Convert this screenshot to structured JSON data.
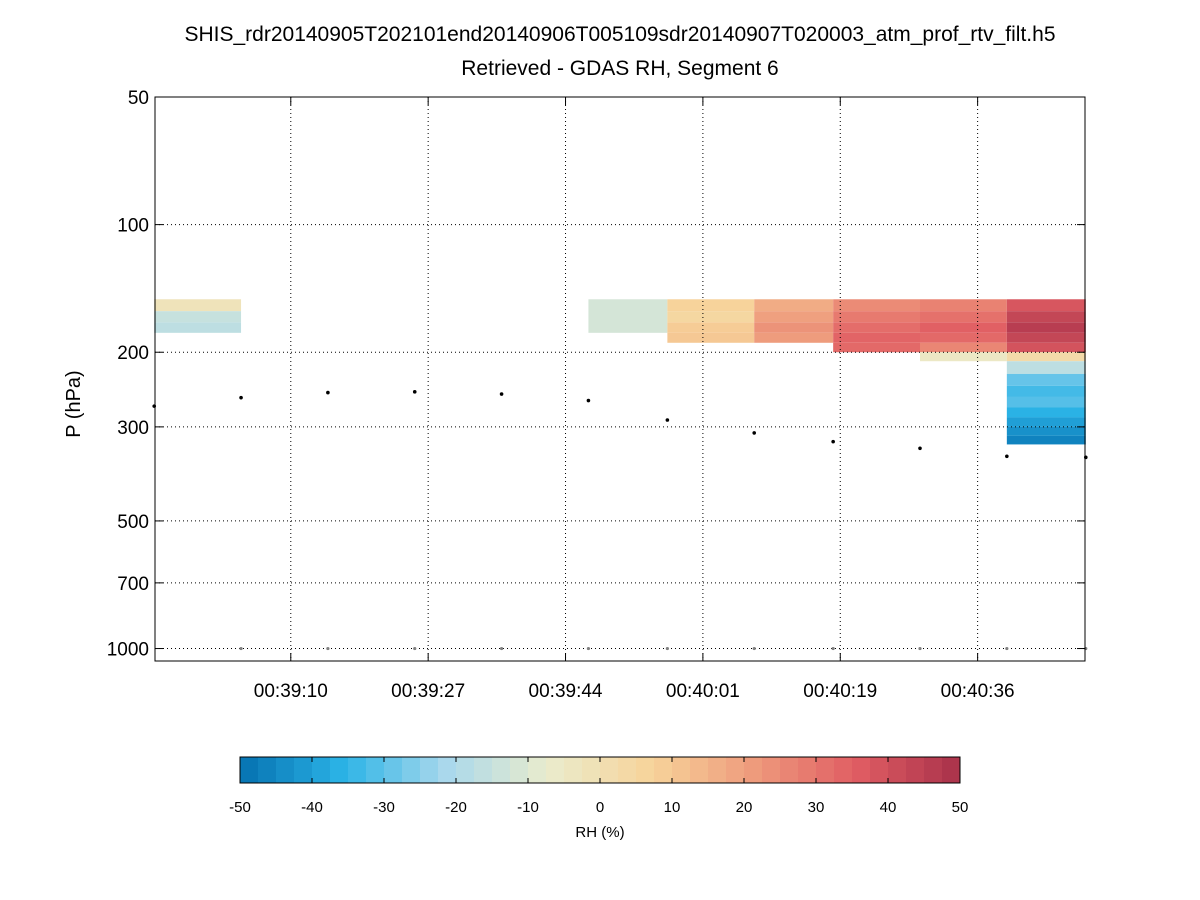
{
  "chart_data": {
    "type": "heatmap",
    "title": "SHIS_rdr20140905T202101end20140906T005109sdr20140907T020003_atm_prof_rtv_filt.h5",
    "subtitle": "Retrieved - GDAS RH, Segment 6",
    "ylabel": "P (hPa)",
    "xlabel": "",
    "y_scale": "log",
    "y_reversed": true,
    "ylim": [
      50,
      1070
    ],
    "y_ticks": [
      50,
      100,
      200,
      300,
      500,
      700,
      1000
    ],
    "y_tick_labels": [
      "50",
      "100",
      "200",
      "300",
      "500",
      "700",
      "1000"
    ],
    "xlim_seconds": [
      2333.1,
      2450.9
    ],
    "x_ticks": [
      "00:39:10",
      "00:39:27",
      "00:39:44",
      "00:40:01",
      "00:40:19",
      "00:40:36"
    ],
    "x_tick_seconds": [
      2350.3,
      2367.7,
      2385.1,
      2402.5,
      2419.9,
      2437.3
    ],
    "grid": true,
    "profile_times": [
      "00:38:53",
      "00:39:04",
      "00:39:15",
      "00:39:26",
      "00:39:37",
      "00:39:48",
      "00:39:58",
      "00:40:09",
      "00:40:19",
      "00:40:30",
      "00:40:41",
      "00:40:51"
    ],
    "cells": [
      {
        "t0": "00:38:53",
        "t1": "00:39:04",
        "p0": 150,
        "p1": 160,
        "rh": -2
      },
      {
        "t0": "00:38:53",
        "t1": "00:39:04",
        "p0": 160,
        "p1": 170,
        "rh": -15
      },
      {
        "t0": "00:38:53",
        "t1": "00:39:04",
        "p0": 170,
        "p1": 180,
        "rh": -17
      },
      {
        "t0": "00:39:48",
        "t1": "00:39:58",
        "p0": 150,
        "p1": 180,
        "rh": -12
      },
      {
        "t0": "00:39:58",
        "t1": "00:40:09",
        "p0": 150,
        "p1": 160,
        "rh": 7
      },
      {
        "t0": "00:39:58",
        "t1": "00:40:09",
        "p0": 160,
        "p1": 170,
        "rh": 5
      },
      {
        "t0": "00:39:58",
        "t1": "00:40:09",
        "p0": 170,
        "p1": 180,
        "rh": 9
      },
      {
        "t0": "00:39:58",
        "t1": "00:40:09",
        "p0": 180,
        "p1": 190,
        "rh": 10
      },
      {
        "t0": "00:40:09",
        "t1": "00:40:19",
        "p0": 150,
        "p1": 160,
        "rh": 17
      },
      {
        "t0": "00:40:09",
        "t1": "00:40:19",
        "p0": 160,
        "p1": 170,
        "rh": 20
      },
      {
        "t0": "00:40:09",
        "t1": "00:40:19",
        "p0": 170,
        "p1": 180,
        "rh": 23
      },
      {
        "t0": "00:40:09",
        "t1": "00:40:19",
        "p0": 180,
        "p1": 190,
        "rh": 21
      },
      {
        "t0": "00:40:19",
        "t1": "00:40:30",
        "p0": 150,
        "p1": 160,
        "rh": 25
      },
      {
        "t0": "00:40:19",
        "t1": "00:40:30",
        "p0": 160,
        "p1": 170,
        "rh": 29
      },
      {
        "t0": "00:40:19",
        "t1": "00:40:30",
        "p0": 170,
        "p1": 180,
        "rh": 32
      },
      {
        "t0": "00:40:19",
        "t1": "00:40:30",
        "p0": 180,
        "p1": 190,
        "rh": 34
      },
      {
        "t0": "00:40:19",
        "t1": "00:40:30",
        "p0": 190,
        "p1": 200,
        "rh": 33
      },
      {
        "t0": "00:40:30",
        "t1": "00:40:41",
        "p0": 150,
        "p1": 160,
        "rh": 27
      },
      {
        "t0": "00:40:30",
        "t1": "00:40:41",
        "p0": 160,
        "p1": 170,
        "rh": 31
      },
      {
        "t0": "00:40:30",
        "t1": "00:40:41",
        "p0": 170,
        "p1": 180,
        "rh": 35
      },
      {
        "t0": "00:40:30",
        "t1": "00:40:41",
        "p0": 180,
        "p1": 190,
        "rh": 33
      },
      {
        "t0": "00:40:30",
        "t1": "00:40:41",
        "p0": 190,
        "p1": 200,
        "rh": 26
      },
      {
        "t0": "00:40:30",
        "t1": "00:40:41",
        "p0": 200,
        "p1": 210,
        "rh": -5
      },
      {
        "t0": "00:40:41",
        "t1": "00:40:51",
        "p0": 150,
        "p1": 160,
        "rh": 38
      },
      {
        "t0": "00:40:41",
        "t1": "00:40:51",
        "p0": 160,
        "p1": 170,
        "rh": 43
      },
      {
        "t0": "00:40:41",
        "t1": "00:40:51",
        "p0": 170,
        "p1": 180,
        "rh": 46
      },
      {
        "t0": "00:40:41",
        "t1": "00:40:51",
        "p0": 180,
        "p1": 190,
        "rh": 43
      },
      {
        "t0": "00:40:41",
        "t1": "00:40:51",
        "p0": 190,
        "p1": 200,
        "rh": 39
      },
      {
        "t0": "00:40:41",
        "t1": "00:40:51",
        "p0": 200,
        "p1": 210,
        "rh": 3
      },
      {
        "t0": "00:40:41",
        "t1": "00:40:51",
        "p0": 210,
        "p1": 225,
        "rh": -17
      },
      {
        "t0": "00:40:41",
        "t1": "00:40:51",
        "p0": 225,
        "p1": 240,
        "rh": -29
      },
      {
        "t0": "00:40:41",
        "t1": "00:40:51",
        "p0": 240,
        "p1": 255,
        "rh": -33
      },
      {
        "t0": "00:40:41",
        "t1": "00:40:51",
        "p0": 255,
        "p1": 270,
        "rh": -31
      },
      {
        "t0": "00:40:41",
        "t1": "00:40:51",
        "p0": 270,
        "p1": 285,
        "rh": -36
      },
      {
        "t0": "00:40:41",
        "t1": "00:40:51",
        "p0": 285,
        "p1": 300,
        "rh": -40
      },
      {
        "t0": "00:40:41",
        "t1": "00:40:51",
        "p0": 300,
        "p1": 315,
        "rh": -43
      },
      {
        "t0": "00:40:41",
        "t1": "00:40:51",
        "p0": 315,
        "p1": 330,
        "rh": -46
      }
    ],
    "tropopause_markers": {
      "color": "#000000",
      "points": [
        {
          "t": "00:38:53",
          "p": 268
        },
        {
          "t": "00:39:04",
          "p": 256
        },
        {
          "t": "00:39:15",
          "p": 249
        },
        {
          "t": "00:39:26",
          "p": 248
        },
        {
          "t": "00:39:37",
          "p": 251
        },
        {
          "t": "00:39:48",
          "p": 260
        },
        {
          "t": "00:39:58",
          "p": 289
        },
        {
          "t": "00:40:09",
          "p": 310
        },
        {
          "t": "00:40:19",
          "p": 325
        },
        {
          "t": "00:40:30",
          "p": 337
        },
        {
          "t": "00:40:41",
          "p": 352
        },
        {
          "t": "00:40:51",
          "p": 354
        }
      ]
    },
    "surface_markers": {
      "color": "#808080",
      "points": [
        {
          "t": "00:39:04",
          "p": 1000
        },
        {
          "t": "00:39:15",
          "p": 1000
        },
        {
          "t": "00:39:26",
          "p": 1000
        },
        {
          "t": "00:39:37",
          "p": 1000
        },
        {
          "t": "00:39:48",
          "p": 1000
        },
        {
          "t": "00:39:58",
          "p": 1000
        },
        {
          "t": "00:40:09",
          "p": 1000
        },
        {
          "t": "00:40:19",
          "p": 1000
        },
        {
          "t": "00:40:30",
          "p": 1000
        },
        {
          "t": "00:40:41",
          "p": 1000
        },
        {
          "t": "00:40:51",
          "p": 1000
        }
      ]
    },
    "colorbar": {
      "label": "RH (%)",
      "range": [
        -50,
        50
      ],
      "ticks": [
        -50,
        -40,
        -30,
        -20,
        -10,
        0,
        10,
        20,
        30,
        40,
        50
      ],
      "tick_labels": [
        "-50",
        "-40",
        "-30",
        "-20",
        "-10",
        "0",
        "10",
        "20",
        "30",
        "40",
        "50"
      ],
      "colormap": [
        "#0571b0",
        "#2bb3e6",
        "#a9d8ec",
        "#eaeccc",
        "#f7d39a",
        "#ee9a7c",
        "#e05d63",
        "#a8314a"
      ],
      "placement": "bottom"
    }
  }
}
